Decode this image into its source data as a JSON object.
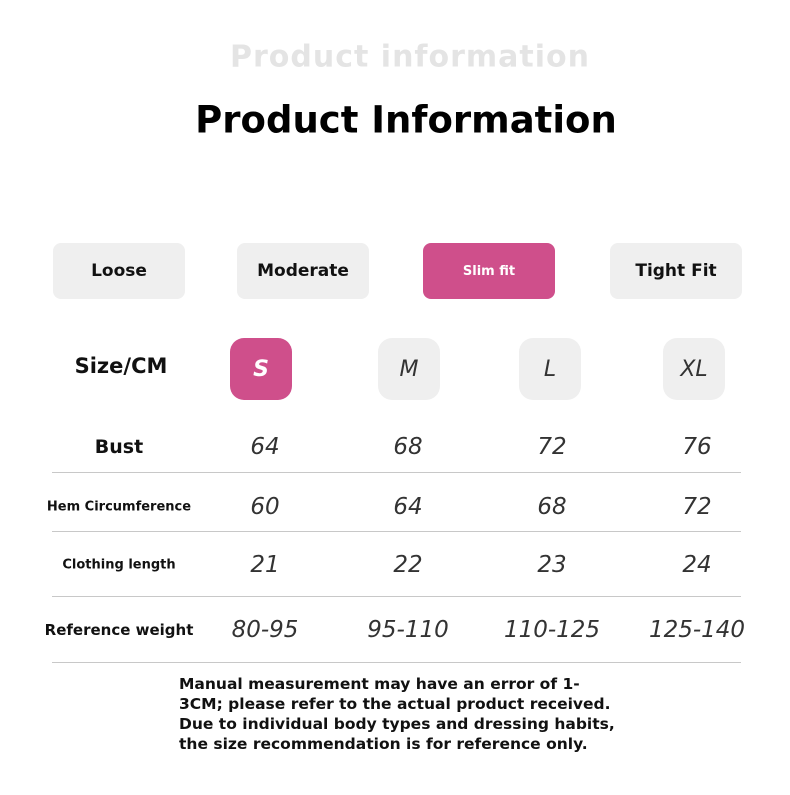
{
  "header": {
    "watermark": "Product information",
    "title": "Product Information"
  },
  "fit": {
    "options": [
      "Loose",
      "Moderate",
      "Slim fit",
      "Tight Fit"
    ]
  },
  "table": {
    "size_label": "Size/CM",
    "sizes": [
      "S",
      "M",
      "L",
      "XL"
    ],
    "rows": [
      {
        "label": "Bust",
        "values": [
          64,
          68,
          72,
          76
        ]
      },
      {
        "label": "Hem Circumference",
        "values": [
          60,
          64,
          68,
          72
        ]
      },
      {
        "label": "Clothing length",
        "values": [
          21,
          22,
          23,
          24
        ]
      },
      {
        "label": "Reference weight",
        "values": [
          "80-95",
          "95-110",
          "110-125",
          "125-140"
        ]
      }
    ]
  },
  "note": "Manual measurement may have an error of 1-3CM; please refer to the actual product received. Due to individual body types and dressing habits, the size recommendation is for reference only."
}
